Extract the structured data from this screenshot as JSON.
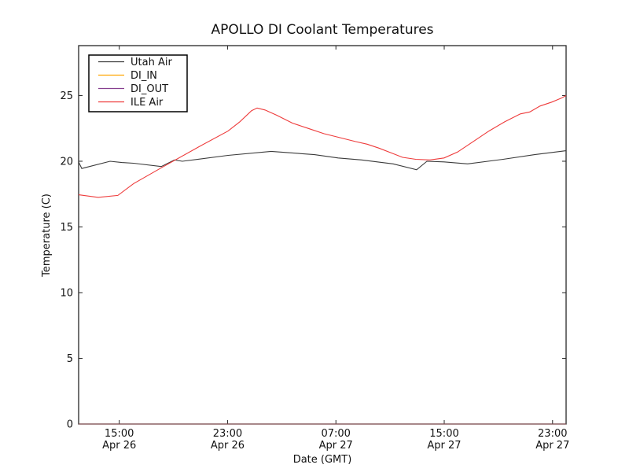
{
  "window": {
    "background": "#ffffff",
    "frame_color": "#262626"
  },
  "chart_data": {
    "type": "line",
    "title": "APOLLO DI Coolant Temperatures",
    "xlabel": "Date (GMT)",
    "ylabel": "Temperature (C)",
    "x_unit": "hours since Apr 26 00:00 GMT",
    "xlim": [
      12,
      48
    ],
    "ylim": [
      0,
      28.8
    ],
    "grid": false,
    "legend_position": "upper left",
    "x_ticks": [
      {
        "value": 15,
        "time": "15:00",
        "date": "Apr 26"
      },
      {
        "value": 23,
        "time": "23:00",
        "date": "Apr 26"
      },
      {
        "value": 31,
        "time": "07:00",
        "date": "Apr 27"
      },
      {
        "value": 39,
        "time": "15:00",
        "date": "Apr 27"
      },
      {
        "value": 47,
        "time": "23:00",
        "date": "Apr 27"
      }
    ],
    "y_ticks": [
      "0",
      "5",
      "10",
      "15",
      "20",
      "25"
    ],
    "series": [
      {
        "name": "Utah Air",
        "color": "#3a3a3a",
        "opacity": 1,
        "points": [
          [
            12.0,
            19.95
          ],
          [
            12.23,
            19.45
          ],
          [
            14.32,
            20.0
          ],
          [
            15.19,
            19.9
          ],
          [
            16.06,
            19.85
          ],
          [
            18.1,
            19.6
          ],
          [
            19.08,
            20.1
          ],
          [
            19.66,
            20.0
          ],
          [
            23.03,
            20.45
          ],
          [
            26.22,
            20.75
          ],
          [
            29.42,
            20.5
          ],
          [
            31.16,
            20.25
          ],
          [
            32.9,
            20.1
          ],
          [
            35.22,
            19.8
          ],
          [
            36.96,
            19.35
          ],
          [
            37.72,
            20.0
          ],
          [
            38.99,
            19.95
          ],
          [
            40.73,
            19.8
          ],
          [
            43.35,
            20.15
          ],
          [
            45.67,
            20.5
          ],
          [
            48.0,
            20.8
          ]
        ]
      },
      {
        "name": "DI_IN",
        "color": "#ffa500",
        "opacity": 0.55,
        "points": [
          [
            12.0,
            0
          ],
          [
            48.0,
            0
          ]
        ]
      },
      {
        "name": "DI_OUT",
        "color": "#863f8f",
        "opacity": 0.55,
        "points": [
          [
            12.0,
            0
          ],
          [
            48.0,
            0
          ]
        ]
      },
      {
        "name": "ILE Air",
        "color": "#ee3b3b",
        "opacity": 1,
        "points": [
          [
            12.0,
            17.45
          ],
          [
            13.45,
            17.25
          ],
          [
            14.9,
            17.4
          ],
          [
            16.06,
            18.3
          ],
          [
            18.27,
            19.6
          ],
          [
            20.88,
            21.1
          ],
          [
            23.03,
            22.3
          ],
          [
            23.9,
            23.0
          ],
          [
            24.77,
            23.85
          ],
          [
            25.18,
            24.05
          ],
          [
            25.76,
            23.9
          ],
          [
            26.63,
            23.5
          ],
          [
            27.79,
            22.9
          ],
          [
            28.95,
            22.5
          ],
          [
            30.11,
            22.1
          ],
          [
            31.27,
            21.8
          ],
          [
            32.43,
            21.5
          ],
          [
            33.31,
            21.3
          ],
          [
            34.18,
            21.0
          ],
          [
            35.05,
            20.65
          ],
          [
            35.92,
            20.3
          ],
          [
            36.9,
            20.15
          ],
          [
            37.95,
            20.1
          ],
          [
            38.99,
            20.25
          ],
          [
            39.98,
            20.7
          ],
          [
            41.14,
            21.5
          ],
          [
            42.3,
            22.3
          ],
          [
            43.46,
            23.0
          ],
          [
            44.62,
            23.6
          ],
          [
            45.32,
            23.75
          ],
          [
            46.07,
            24.2
          ],
          [
            46.94,
            24.5
          ],
          [
            47.64,
            24.8
          ],
          [
            48.0,
            25.0
          ]
        ]
      }
    ]
  }
}
